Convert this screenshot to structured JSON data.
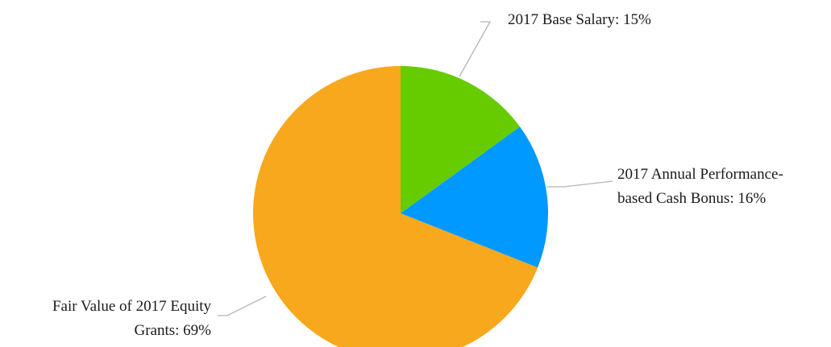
{
  "chart_data": {
    "type": "pie",
    "title": "",
    "start_angle_deg": 0,
    "direction": "clockwise",
    "slices": [
      {
        "category": "2017 Base Salary",
        "value": 15,
        "label_lines": [
          "2017 Base Salary: 15%"
        ],
        "color": "#66cc00"
      },
      {
        "category": "2017 Annual Performance-based Cash Bonus",
        "value": 16,
        "label_lines": [
          "2017 Annual Performance-",
          "based Cash Bonus: 16%"
        ],
        "color": "#0099ff"
      },
      {
        "category": "Fair Value of 2017 Equity Grants",
        "value": 69,
        "label_lines": [
          "Fair Value of 2017 Equity",
          "Grants: 69%"
        ],
        "color": "#f8a81c"
      }
    ],
    "legend": "none",
    "data_labels": "outside with leader lines"
  }
}
